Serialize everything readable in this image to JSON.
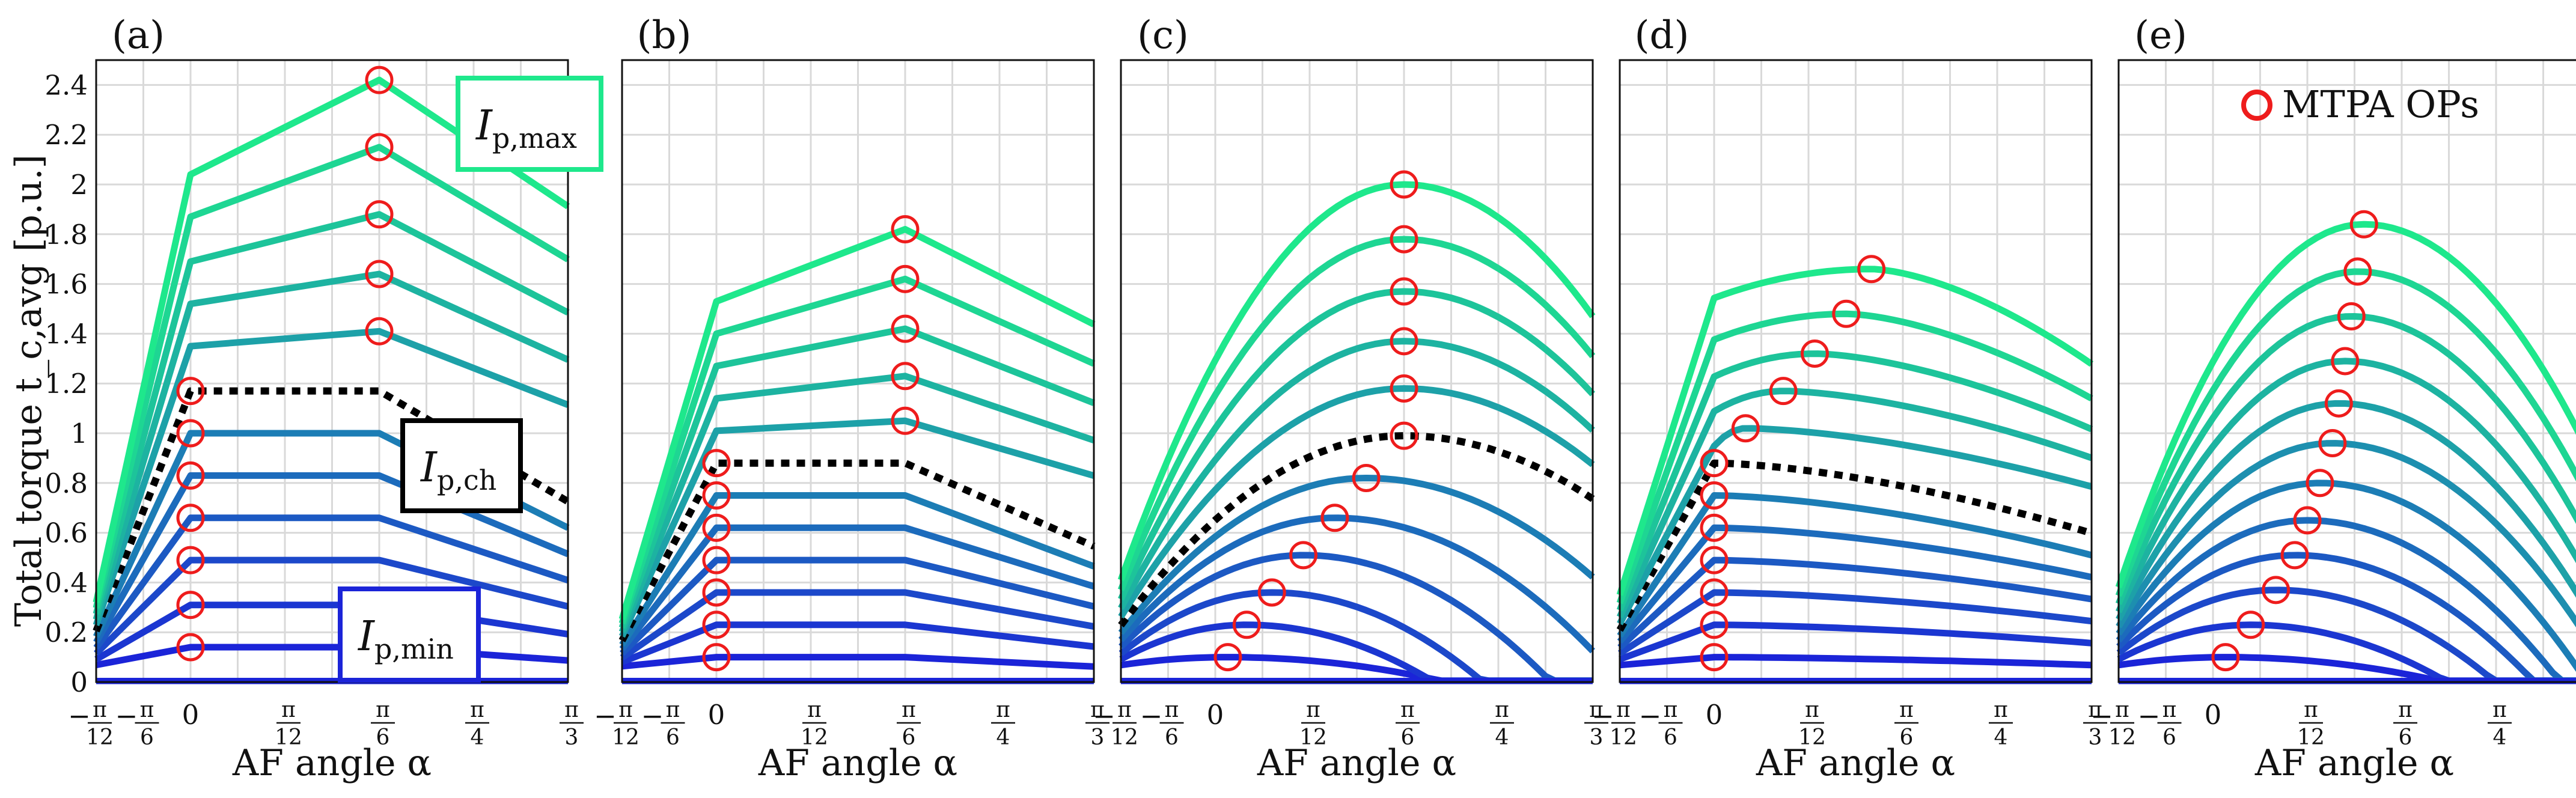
{
  "chart_data": [
    {
      "type": "line",
      "panel_label": "(a)",
      "mode": "sharp",
      "xlabel": "AF angle α",
      "ylabel": "Total torque t_c,avg [p.u.]",
      "xlim": [
        -0.2618,
        1.0472
      ],
      "ylim": [
        0,
        2.5
      ],
      "peaks": [
        0.14,
        0.31,
        0.49,
        0.66,
        0.83,
        1.0,
        1.17,
        1.35,
        1.52,
        1.69,
        1.87,
        2.04
      ],
      "peak2": [
        0.14,
        0.31,
        0.49,
        0.66,
        0.83,
        1.0,
        1.17,
        1.41,
        1.64,
        1.88,
        2.15,
        2.42
      ],
      "dashed_index": 6,
      "mtpa_x_deg": [
        0,
        0,
        0,
        0,
        0,
        0,
        0,
        30,
        30,
        30,
        30,
        30
      ],
      "annotations": [
        {
          "main": "I",
          "sub": "p,max",
          "color": "#1ee88c"
        },
        {
          "main": "I",
          "sub": "p,ch",
          "color": "#000000"
        },
        {
          "main": "I",
          "sub": "p,min",
          "color": "#1b24d8"
        }
      ]
    },
    {
      "type": "line",
      "panel_label": "(b)",
      "mode": "sharp",
      "xlabel": "AF angle α",
      "xlim": [
        -0.2618,
        1.0472
      ],
      "ylim": [
        0,
        2.5
      ],
      "peaks": [
        0.1,
        0.23,
        0.36,
        0.49,
        0.62,
        0.75,
        0.88,
        1.01,
        1.14,
        1.27,
        1.4,
        1.53
      ],
      "peak2": [
        0.1,
        0.23,
        0.36,
        0.49,
        0.62,
        0.75,
        0.88,
        1.05,
        1.23,
        1.42,
        1.62,
        1.82
      ],
      "dashed_index": 6,
      "mtpa_x_deg": [
        0,
        0,
        0,
        0,
        0,
        0,
        0,
        30,
        30,
        30,
        30,
        30
      ]
    },
    {
      "type": "line",
      "panel_label": "(c)",
      "mode": "smooth",
      "xlabel": "AF angle α",
      "xlim": [
        -0.2618,
        1.0472
      ],
      "ylim": [
        0,
        2.5
      ],
      "peaks": [
        0.1,
        0.23,
        0.36,
        0.51,
        0.66,
        0.82,
        0.99,
        1.18,
        1.37,
        1.57,
        1.78,
        2.0
      ],
      "dashed_index": 6,
      "mtpa_x_deg": [
        2,
        5,
        9,
        14,
        19,
        24,
        30,
        30,
        30,
        30,
        30,
        30
      ]
    },
    {
      "type": "line",
      "panel_label": "(d)",
      "mode": "dshape",
      "xlabel": "AF angle α",
      "xlim": [
        -0.2618,
        1.0472
      ],
      "ylim": [
        0,
        2.5
      ],
      "peaks": [
        0.1,
        0.23,
        0.36,
        0.49,
        0.62,
        0.75,
        0.88,
        1.02,
        1.17,
        1.32,
        1.48,
        1.66
      ],
      "dashed_index": 6,
      "mtpa_x_deg": [
        0,
        0,
        0,
        0,
        0,
        0,
        0,
        5,
        11,
        16,
        21,
        25
      ]
    },
    {
      "type": "line",
      "panel_label": "(e)",
      "mode": "smooth",
      "xlabel": "AF angle α",
      "xlim": [
        -0.2618,
        1.0472
      ],
      "ylim": [
        0,
        2.5
      ],
      "peaks": [
        0.1,
        0.23,
        0.37,
        0.51,
        0.65,
        0.8,
        0.96,
        1.12,
        1.29,
        1.47,
        1.65,
        1.84
      ],
      "dashed_index": -1,
      "mtpa_x_deg": [
        2,
        6,
        10,
        13,
        15,
        17,
        19,
        20,
        21,
        22,
        23,
        24
      ],
      "legend": "MTPA OPs"
    }
  ],
  "xticks": [
    {
      "deg": -15,
      "sign": "−",
      "num": "π",
      "den": "12"
    },
    {
      "deg": 0,
      "sign": "−",
      "num": "π",
      "den": "6",
      "shift": -30
    },
    {
      "deg": 0,
      "plain": "0"
    },
    {
      "deg": 15,
      "num": "π",
      "den": "12"
    },
    {
      "deg": 30,
      "num": "π",
      "den": "6"
    },
    {
      "deg": 45,
      "num": "π",
      "den": "4"
    },
    {
      "deg": 60,
      "num": "π",
      "den": "3"
    }
  ],
  "yticks": [
    "0",
    "0.2",
    "0.4",
    "0.6",
    "0.8",
    "1",
    "1.2",
    "1.4",
    "1.6",
    "1.8",
    "2",
    "2.2",
    "2.4"
  ],
  "colors": {
    "min": "#1b24d8",
    "max": "#1ee88c",
    "marker": "#ee1c1c",
    "grid": "#d9d9d9",
    "dashed": "#000000"
  }
}
